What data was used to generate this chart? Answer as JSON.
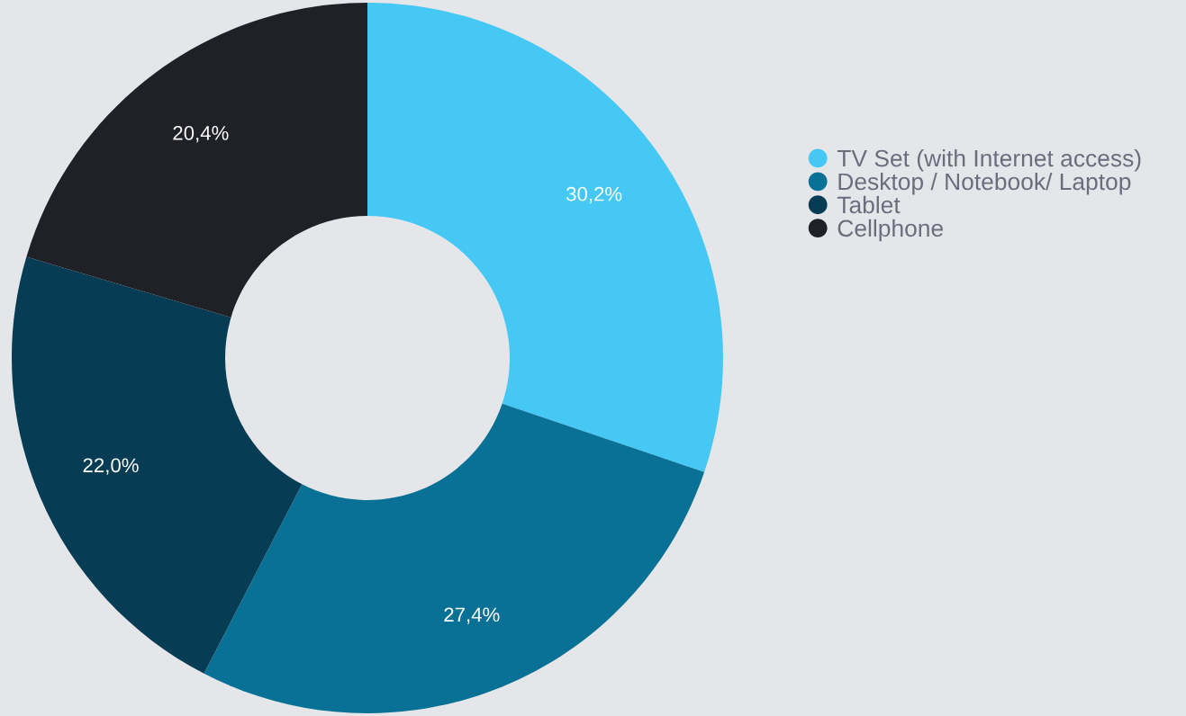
{
  "chart_data": {
    "type": "donut",
    "categories": [
      "TV Set (with Internet access)",
      "Desktop / Notebook/ Laptop",
      "Tablet",
      "Cellphone"
    ],
    "values": [
      30.2,
      27.4,
      22.0,
      20.4
    ],
    "value_labels": [
      "30,2%",
      "27,4%",
      "22,0%",
      "20,4%"
    ],
    "colors": [
      "#46c8f5",
      "#0a7196",
      "#073d54",
      "#202127"
    ],
    "legend": "right"
  }
}
